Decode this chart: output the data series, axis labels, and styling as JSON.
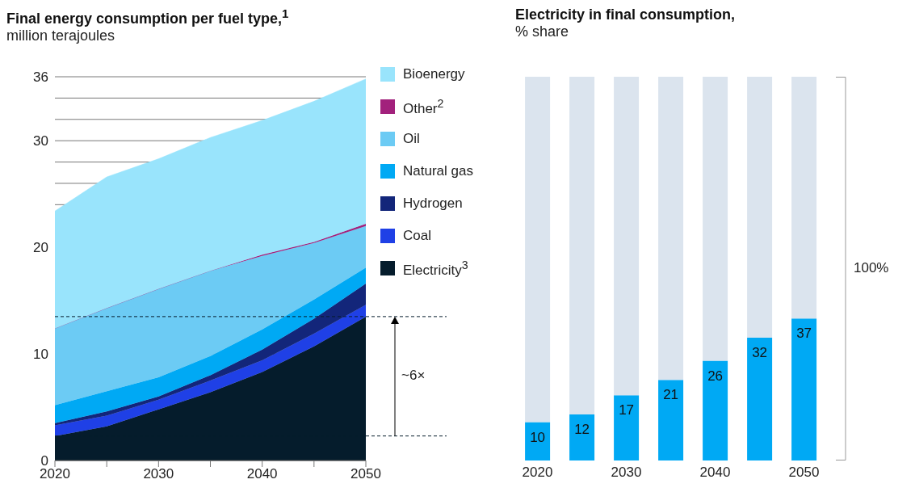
{
  "chart_data": [
    {
      "type": "area",
      "stacked": true,
      "title": "Final energy consumption per fuel type,$^{1}$",
      "subtitle": "million terajoules",
      "x": [
        2020,
        2025,
        2030,
        2035,
        2040,
        2045,
        2050
      ],
      "xlim": [
        2020,
        2050
      ],
      "xticks": [
        2020,
        {
          "value": 2025,
          "label": null
        },
        2030,
        {
          "value": 2035,
          "label": null
        },
        2040,
        {
          "value": 2045,
          "label": null
        },
        2050
      ],
      "ylim": [
        0,
        36
      ],
      "yticks": [
        0,
        10,
        20,
        {
          "value": 24,
          "label": null
        },
        {
          "value": 26,
          "label": null
        },
        {
          "value": 28,
          "label": null
        },
        30,
        {
          "value": 32,
          "label": null
        },
        {
          "value": 34,
          "label": null
        },
        36
      ],
      "grid": "y",
      "legend": "right",
      "series": [
        {
          "name": "Electricity$^{3}$",
          "color": "#051c2c",
          "values": [
            2.3,
            3.2,
            4.8,
            6.4,
            8.3,
            10.7,
            13.5
          ]
        },
        {
          "name": "Coal",
          "color": "#1f40e6",
          "values": [
            1.0,
            1.0,
            0.9,
            1.1,
            1.1,
            1.2,
            1.1
          ]
        },
        {
          "name": "Hydrogen",
          "color": "#13267a",
          "values": [
            0.2,
            0.4,
            0.3,
            0.5,
            1.0,
            1.4,
            2.0
          ]
        },
        {
          "name": "Natural gas",
          "color": "#00a9f4",
          "values": [
            1.7,
            1.9,
            1.8,
            1.8,
            1.9,
            1.8,
            1.5
          ]
        },
        {
          "name": "Oil",
          "color": "#6ccbf4",
          "values": [
            7.2,
            7.8,
            8.3,
            8.0,
            6.9,
            5.3,
            3.9
          ]
        },
        {
          "name": "Other$^{2}$",
          "color": "#a2217c",
          "values": [
            0,
            0,
            0,
            0,
            0.1,
            0.1,
            0.2
          ]
        },
        {
          "name": "Bioenergy",
          "color": "#99e4fc",
          "values": [
            11.0,
            12.3,
            12.2,
            12.5,
            12.6,
            13.2,
            13.6
          ]
        }
      ],
      "ref_lines": [
        {
          "axis": "y",
          "value": 2.3,
          "line_style": "dashed",
          "color": "#051c2c"
        },
        {
          "axis": "y",
          "value": 13.5,
          "line_style": "dashed",
          "color": "#051c2c"
        }
      ],
      "annotations": [
        "~6×"
      ]
    },
    {
      "type": "bar",
      "stacked": true,
      "title": "Electricity in final consumption,",
      "subtitle": "% share",
      "categories": [
        "2020",
        null,
        "2030",
        null,
        "2040",
        null,
        "2050"
      ],
      "ylim": [
        0,
        100
      ],
      "tick_labels": "x",
      "series": [
        {
          "color": "#00a9f4",
          "values": [
            10,
            12,
            17,
            21,
            26,
            32,
            37
          ],
          "value_labels": [
            "10",
            "12",
            "17",
            "21",
            "26",
            "32",
            "37"
          ]
        },
        {
          "color": "#dbe4ee",
          "values": [
            90,
            88,
            83,
            79,
            74,
            68,
            63
          ]
        }
      ],
      "annotations": [
        "100%"
      ]
    }
  ]
}
